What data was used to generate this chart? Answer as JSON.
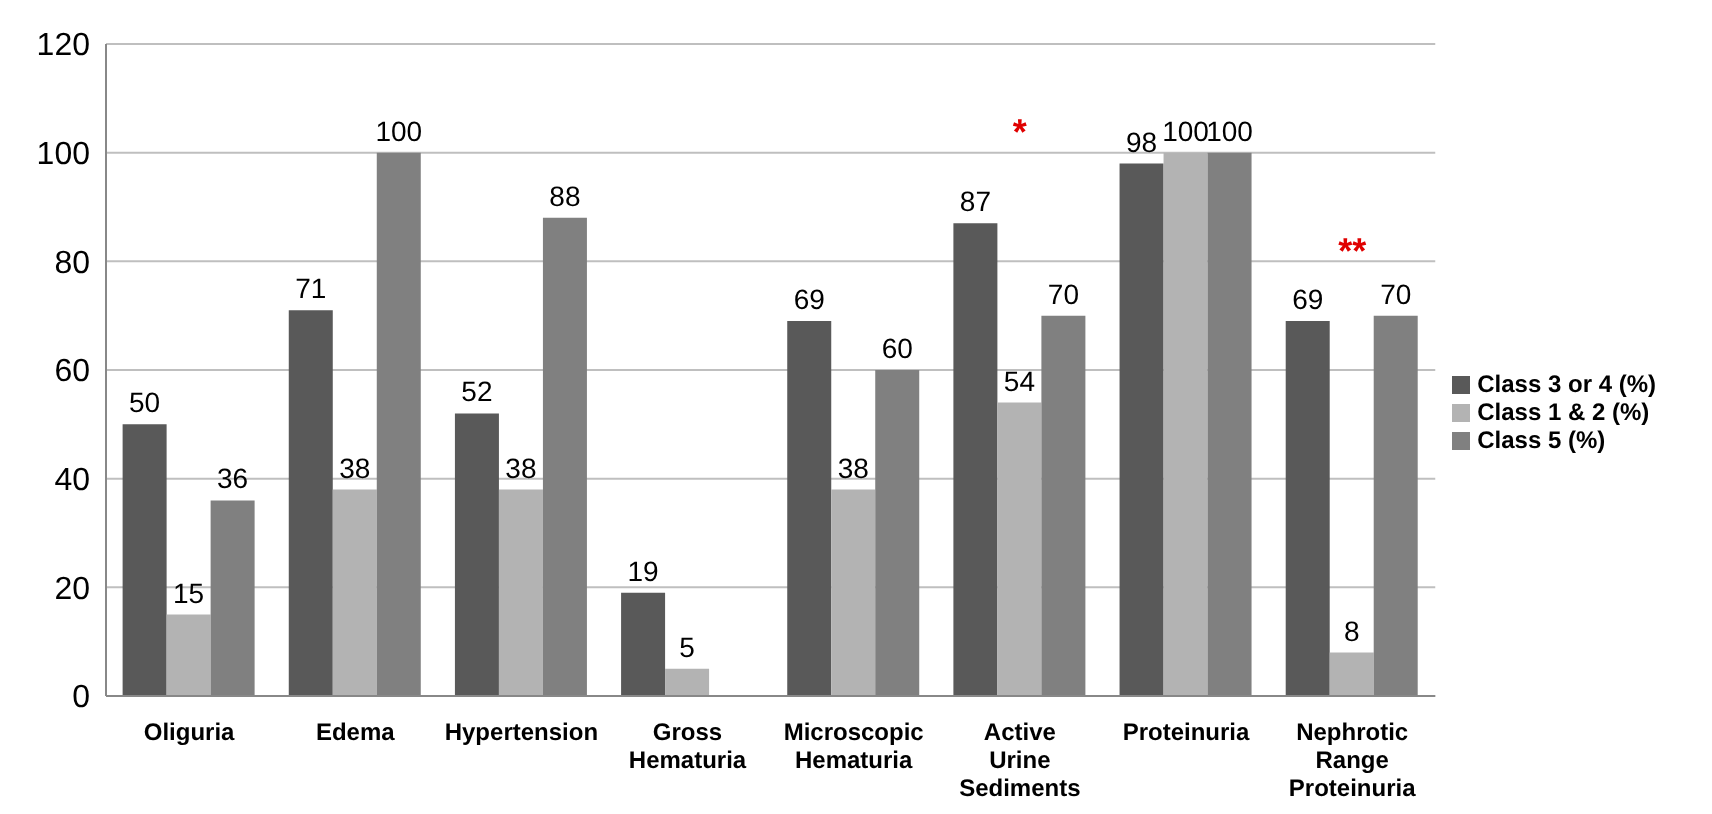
{
  "chart_data": {
    "type": "bar",
    "categories": [
      "Oliguria",
      "Edema",
      "Hypertension",
      "Gross Hematuria",
      "Microscopic Hematuria",
      "Active Urine Sediments",
      "Proteinuria",
      "Nephrotic Range Proteinuria"
    ],
    "series": [
      {
        "name": "Class 3 or 4 (%)",
        "color": "#595959",
        "values": [
          50,
          71,
          52,
          19,
          69,
          87,
          98,
          69
        ]
      },
      {
        "name": "Class 1 & 2 (%)",
        "color": "#b3b3b3",
        "values": [
          15,
          38,
          38,
          5,
          38,
          54,
          100,
          8
        ]
      },
      {
        "name": "Class 5 (%)",
        "color": "#808080",
        "values": [
          36,
          100,
          88,
          null,
          60,
          70,
          100,
          70
        ]
      }
    ],
    "ylim": [
      0,
      120
    ],
    "yticks": [
      0,
      20,
      40,
      60,
      80,
      100,
      120
    ],
    "grid": "y",
    "legend": "right",
    "data_labels": true,
    "annotations": [
      "*",
      "**"
    ]
  }
}
